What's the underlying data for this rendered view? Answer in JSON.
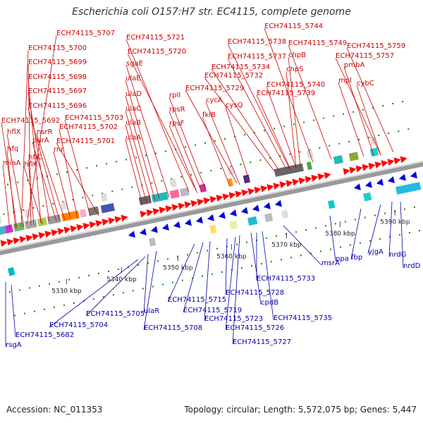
{
  "title": "Escherichia coli O157:H7 str. EC4115, complete genome",
  "footer": {
    "accession": "Accession: NC_011353",
    "summary": "Topology: circular; Length: 5,572,075 bp; Genes: 5,447"
  },
  "colors": {
    "forward_label": "#cc0000",
    "reverse_label": "#0000aa",
    "forward_gene": "#ff0000",
    "reverse_gene": "#0000dd",
    "tick": "#118811"
  },
  "scale": [
    "5330 kbp",
    "5340 kbp",
    "5350 kbp",
    "5360 kbp",
    "5370 kbp",
    "5380 kbp",
    "5390 kbp"
  ],
  "forward_labels": [
    "ECH74115_5707",
    "ECH74115_5700",
    "ECH74115_5699",
    "ECH74115_5698",
    "ECH74115_5697",
    "ECH74115_5696",
    "ECH74115_5703",
    "ECH74115_5702",
    "ECH74115_5692",
    "ECH74115_5701",
    "hflX",
    "nsrR",
    "purA",
    "hfq",
    "rnr",
    "hflC",
    "miaA",
    "hflK",
    "ECH74115_5721",
    "ECH74115_5720",
    "sgaE",
    "ulaE",
    "ulaD",
    "ulaC",
    "ulaB",
    "ulaA",
    "rplI",
    "rpsR",
    "rpsF",
    "cycA",
    "fklB",
    "cysQ",
    "ECH74115_5729",
    "ECH74115_5744",
    "ECH74115_5738",
    "ECH74115_5737",
    "ECH74115_5734",
    "ECH74115_5732",
    "chpB",
    "chpS",
    "ECH74115_5740",
    "ECH74115_5739",
    "ECH74115_5749",
    "ECH74115_5759",
    "ECH74115_5757",
    "pmbA",
    "mpl",
    "cybC"
  ],
  "reverse_labels": [
    "rsgA",
    "ECH74115_5682",
    "ECH74115_5704",
    "ECH74115_5705",
    "ulaR",
    "ECH74115_5708",
    "ECH74115_5715",
    "ECH74115_5719",
    "ECH74115_5723",
    "ECH74115_5726",
    "ECH74115_5727",
    "ECH74115_5728",
    "cpdB",
    "ECH74115_5733",
    "ECH74115_5735",
    "msrA",
    "ppa",
    "fbp",
    "yjgA",
    "nrdG",
    "nrdD"
  ]
}
